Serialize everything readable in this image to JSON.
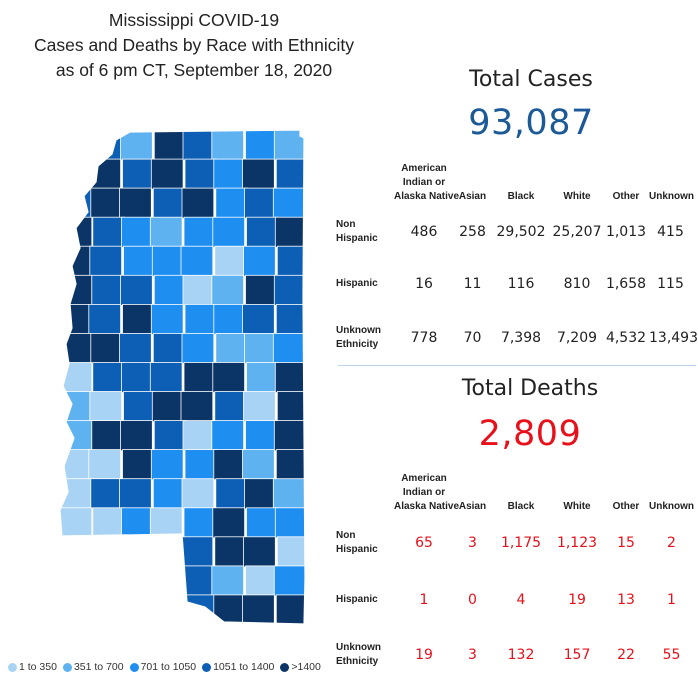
{
  "title": {
    "line1": "Mississippi COVID-19",
    "line2": "Cases and Deaths by Race with Ethnicity",
    "line3": "as of 6 pm CT, September 18, 2020"
  },
  "colors": {
    "level1": "#a9d3f5",
    "level2": "#5fb2f0",
    "level3": "#1f8ef1",
    "level4": "#0d5fb5",
    "level5": "#0a3566",
    "cases_total": "#1b5a96",
    "deaths_red": "#e8101a"
  },
  "legend": [
    {
      "label": "1 to 350",
      "color": "#a9d3f5"
    },
    {
      "label": "351 to 700",
      "color": "#5fb2f0"
    },
    {
      "label": "701 to 1050",
      "color": "#1f8ef1"
    },
    {
      "label": "1051 to 1400",
      "color": "#0d5fb5"
    },
    {
      "label": ">1400",
      "color": "#0a3566"
    }
  ],
  "cases": {
    "label": "Total Cases",
    "total": "93,087",
    "headers": {
      "aian": [
        "American",
        "Indian or",
        "Alaska Native"
      ],
      "asian": "Asian",
      "black": "Black",
      "white": "White",
      "other": "Other",
      "unknown": "Unknown"
    },
    "rows": [
      {
        "label": [
          "Non",
          "Hispanic"
        ],
        "values": [
          "486",
          "258",
          "29,502",
          "25,207",
          "1,013",
          "415"
        ]
      },
      {
        "label": [
          "Hispanic"
        ],
        "values": [
          "16",
          "11",
          "116",
          "810",
          "1,658",
          "115"
        ]
      },
      {
        "label": [
          "Unknown",
          "Ethnicity"
        ],
        "values": [
          "778",
          "70",
          "7,398",
          "7,209",
          "4,532",
          "13,493"
        ]
      }
    ]
  },
  "deaths": {
    "label": "Total Deaths",
    "total": "2,809",
    "headers": {
      "aian": [
        "American",
        "Indian or",
        "Alaska Native"
      ],
      "asian": "Asian",
      "black": "Black",
      "white": "White",
      "other": "Other",
      "unknown": "Unknown"
    },
    "rows": [
      {
        "label": [
          "Non",
          "Hispanic"
        ],
        "values": [
          "65",
          "3",
          "1,175",
          "1,123",
          "15",
          "2"
        ]
      },
      {
        "label": [
          "Hispanic"
        ],
        "values": [
          "1",
          "0",
          "4",
          "19",
          "13",
          "1"
        ]
      },
      {
        "label": [
          "Unknown",
          "Ethnicity"
        ],
        "values": [
          "19",
          "3",
          "132",
          "157",
          "22",
          "55"
        ]
      }
    ]
  },
  "chart_data": [
    {
      "type": "table",
      "title": "Total Cases",
      "total": 93087,
      "columns": [
        "American Indian or Alaska Native",
        "Asian",
        "Black",
        "White",
        "Other",
        "Unknown"
      ],
      "rows": [
        {
          "name": "Non Hispanic",
          "values": [
            486,
            258,
            29502,
            25207,
            1013,
            415
          ]
        },
        {
          "name": "Hispanic",
          "values": [
            16,
            11,
            116,
            810,
            1658,
            115
          ]
        },
        {
          "name": "Unknown Ethnicity",
          "values": [
            778,
            70,
            7398,
            7209,
            4532,
            13493
          ]
        }
      ]
    },
    {
      "type": "table",
      "title": "Total Deaths",
      "total": 2809,
      "columns": [
        "American Indian or Alaska Native",
        "Asian",
        "Black",
        "White",
        "Other",
        "Unknown"
      ],
      "rows": [
        {
          "name": "Non Hispanic",
          "values": [
            65,
            3,
            1175,
            1123,
            15,
            2
          ]
        },
        {
          "name": "Hispanic",
          "values": [
            1,
            0,
            4,
            19,
            13,
            1
          ]
        },
        {
          "name": "Unknown Ethnicity",
          "values": [
            19,
            3,
            132,
            157,
            22,
            55
          ]
        }
      ]
    },
    {
      "type": "heatmap",
      "legend": [
        "1 to 350",
        "351 to 700",
        "701 to 1050",
        "1051 to 1400",
        ">1400"
      ]
    }
  ]
}
